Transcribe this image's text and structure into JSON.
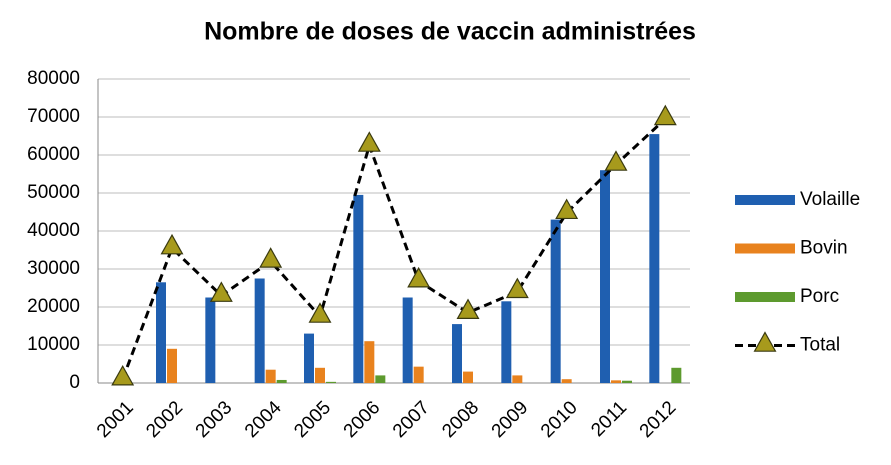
{
  "chart_data": {
    "type": "bar",
    "title": "Nombre de doses de vaccin administrées",
    "categories": [
      "2001",
      "2002",
      "2003",
      "2004",
      "2005",
      "2006",
      "2007",
      "2008",
      "2009",
      "2010",
      "2011",
      "2012"
    ],
    "series": [
      {
        "name": "Volaille",
        "color": "#1f5fb0",
        "values": [
          0,
          26500,
          22500,
          27500,
          13000,
          49500,
          22500,
          15500,
          21500,
          43000,
          56000,
          65500
        ]
      },
      {
        "name": "Bovin",
        "color": "#e8821e",
        "values": [
          0,
          9000,
          0,
          3500,
          4000,
          11000,
          4300,
          3000,
          2000,
          1000,
          700,
          0
        ]
      },
      {
        "name": "Porc",
        "color": "#5d9a2e",
        "values": [
          0,
          0,
          0,
          800,
          300,
          2000,
          0,
          0,
          0,
          0,
          600,
          4000
        ]
      },
      {
        "name": "Total",
        "type": "line",
        "color": "#000000",
        "marker_color": "#a79a1c",
        "values": [
          1000,
          35500,
          23000,
          32000,
          17500,
          62500,
          26800,
          18500,
          24000,
          44800,
          57500,
          69500
        ]
      }
    ],
    "ylim": [
      0,
      80000
    ],
    "yticks": [
      0,
      10000,
      20000,
      30000,
      40000,
      50000,
      60000,
      70000,
      80000
    ],
    "grid": true,
    "legend": "right"
  }
}
